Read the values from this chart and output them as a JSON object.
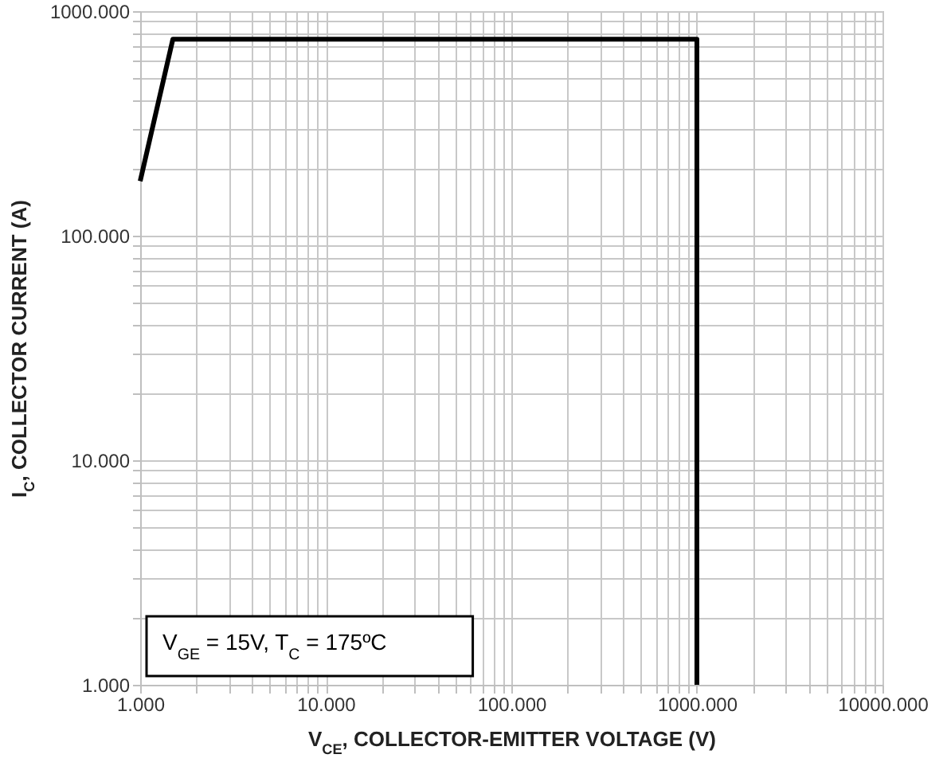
{
  "chart_data": {
    "type": "line",
    "xlabel": "V$_{CE}$, COLLECTOR-EMITTER VOLTAGE (V)",
    "ylabel": "I$_{C}$, COLLECTOR CURRENT (A)",
    "annotations": [
      "V$_{GE}$ = 15V, T$_{C}$ = 175ºC"
    ],
    "series": [
      {
        "color": "#000000",
        "x": [
          1,
          1.5,
          1000,
          1000
        ],
        "values": [
          175,
          750,
          750,
          1
        ]
      }
    ],
    "log": "xy",
    "grid": true,
    "line_style": "solid",
    "xlim": [
      1,
      10000
    ],
    "ylim": [
      1,
      1000
    ],
    "xticks": [
      {
        "value": 1,
        "label": "1.000"
      },
      {
        "value": 2,
        "label": null
      },
      {
        "value": 3,
        "label": null
      },
      {
        "value": 4,
        "label": null
      },
      {
        "value": 5,
        "label": null
      },
      {
        "value": 6,
        "label": null
      },
      {
        "value": 7,
        "label": null
      },
      {
        "value": 8,
        "label": null
      },
      {
        "value": 9,
        "label": null
      },
      {
        "value": 10,
        "label": "10.000"
      },
      {
        "value": 20,
        "label": null
      },
      {
        "value": 30,
        "label": null
      },
      {
        "value": 40,
        "label": null
      },
      {
        "value": 50,
        "label": null
      },
      {
        "value": 60,
        "label": null
      },
      {
        "value": 70,
        "label": null
      },
      {
        "value": 80,
        "label": null
      },
      {
        "value": 90,
        "label": null
      },
      {
        "value": 100,
        "label": "100.000"
      },
      {
        "value": 200,
        "label": null
      },
      {
        "value": 300,
        "label": null
      },
      {
        "value": 400,
        "label": null
      },
      {
        "value": 500,
        "label": null
      },
      {
        "value": 600,
        "label": null
      },
      {
        "value": 700,
        "label": null
      },
      {
        "value": 800,
        "label": null
      },
      {
        "value": 900,
        "label": null
      },
      {
        "value": 1000,
        "label": "1000.000"
      },
      {
        "value": 2000,
        "label": null
      },
      {
        "value": 3000,
        "label": null
      },
      {
        "value": 4000,
        "label": null
      },
      {
        "value": 5000,
        "label": null
      },
      {
        "value": 6000,
        "label": null
      },
      {
        "value": 7000,
        "label": null
      },
      {
        "value": 8000,
        "label": null
      },
      {
        "value": 9000,
        "label": null
      },
      {
        "value": 10000,
        "label": "10000.000"
      }
    ],
    "yticks": [
      {
        "value": 1,
        "label": "1.000"
      },
      {
        "value": 2,
        "label": null
      },
      {
        "value": 3,
        "label": null
      },
      {
        "value": 4,
        "label": null
      },
      {
        "value": 5,
        "label": null
      },
      {
        "value": 6,
        "label": null
      },
      {
        "value": 7,
        "label": null
      },
      {
        "value": 8,
        "label": null
      },
      {
        "value": 9,
        "label": null
      },
      {
        "value": 10,
        "label": "10.000"
      },
      {
        "value": 20,
        "label": null
      },
      {
        "value": 30,
        "label": null
      },
      {
        "value": 40,
        "label": null
      },
      {
        "value": 50,
        "label": null
      },
      {
        "value": 60,
        "label": null
      },
      {
        "value": 70,
        "label": null
      },
      {
        "value": 80,
        "label": null
      },
      {
        "value": 90,
        "label": null
      },
      {
        "value": 100,
        "label": "100.000"
      },
      {
        "value": 200,
        "label": null
      },
      {
        "value": 300,
        "label": null
      },
      {
        "value": 400,
        "label": null
      },
      {
        "value": 500,
        "label": null
      },
      {
        "value": 600,
        "label": null
      },
      {
        "value": 700,
        "label": null
      },
      {
        "value": 800,
        "label": null
      },
      {
        "value": 900,
        "label": null
      },
      {
        "value": 1000,
        "label": "1000.000"
      }
    ]
  }
}
